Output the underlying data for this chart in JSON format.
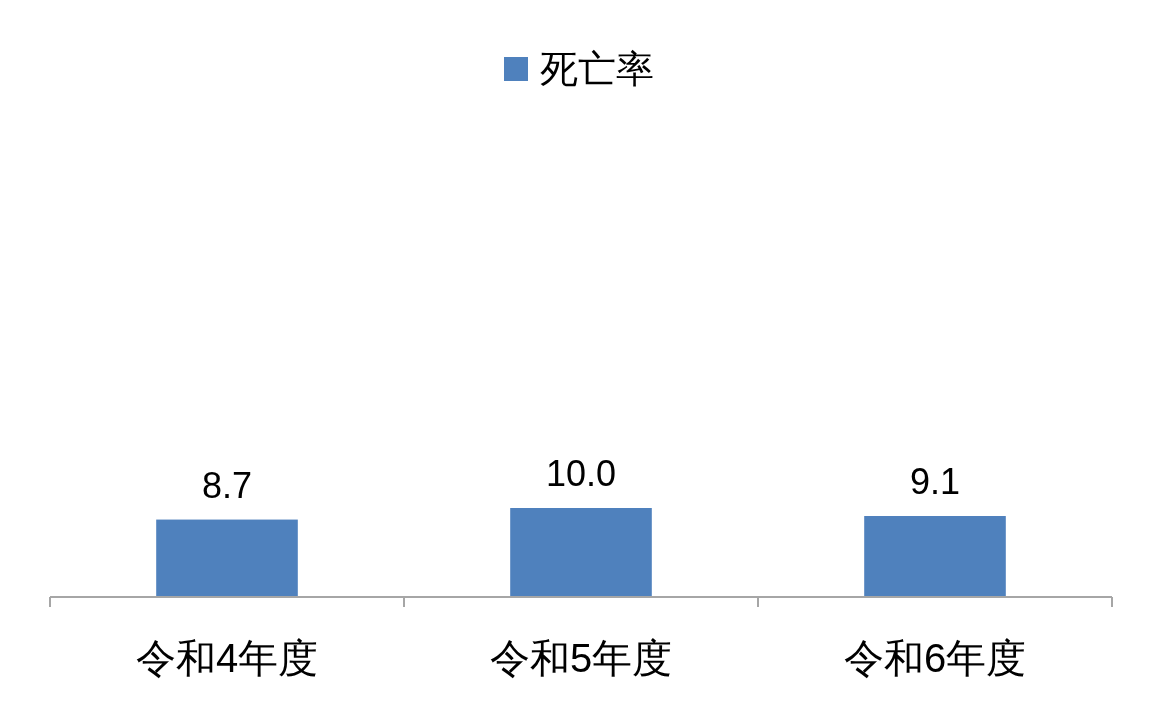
{
  "chart_data": {
    "type": "bar",
    "categories": [
      "令和4年度",
      "令和5年度",
      "令和6年度"
    ],
    "series": [
      {
        "name": "死亡率",
        "color": "#4f81bd",
        "values": [
          8.7,
          10.0,
          9.1
        ],
        "value_labels": [
          "8.7",
          "10.0",
          "9.1"
        ]
      }
    ],
    "legend": "top"
  }
}
